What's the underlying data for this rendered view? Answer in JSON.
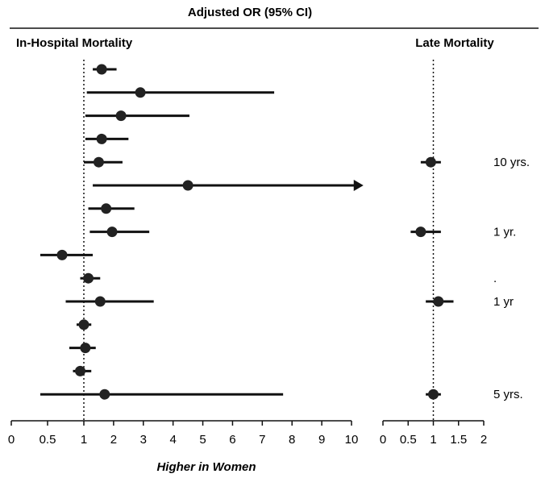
{
  "chart_data": {
    "type": "forest",
    "title": "Adjusted OR (95% CI)",
    "xlabel": "Higher in Women",
    "reference_line": 1,
    "panels": [
      {
        "id": "in_hospital",
        "title": "In-Hospital Mortality",
        "xlim": [
          0,
          10
        ],
        "ticks": [
          "0",
          "0.5",
          "1",
          "2",
          "3",
          "4",
          "5",
          "6",
          "7",
          "8",
          "9",
          "10"
        ],
        "rows": [
          {
            "or": 1.6,
            "lo": 1.3,
            "hi": 2.1
          },
          {
            "or": 2.9,
            "lo": 1.1,
            "hi": 7.4
          },
          {
            "or": 2.25,
            "lo": 1.05,
            "hi": 4.55
          },
          {
            "or": 1.6,
            "lo": 1.05,
            "hi": 2.5
          },
          {
            "or": 1.5,
            "lo": 1.0,
            "hi": 2.3
          },
          {
            "or": 4.5,
            "lo": 1.3,
            "hi": 10.4,
            "arrow": true
          },
          {
            "or": 1.75,
            "lo": 1.15,
            "hi": 2.7
          },
          {
            "or": 1.95,
            "lo": 1.2,
            "hi": 3.2
          },
          {
            "or": 0.7,
            "lo": 0.4,
            "hi": 1.3
          },
          {
            "or": 1.15,
            "lo": 0.95,
            "hi": 1.55
          },
          {
            "or": 1.55,
            "lo": 0.75,
            "hi": 3.35
          },
          {
            "or": 1.0,
            "lo": 0.9,
            "hi": 1.25
          },
          {
            "or": 1.05,
            "lo": 0.8,
            "hi": 1.4
          },
          {
            "or": 0.95,
            "lo": 0.85,
            "hi": 1.25
          },
          {
            "or": 1.7,
            "lo": 0.4,
            "hi": 7.7
          }
        ]
      },
      {
        "id": "late",
        "title": "Late Mortality",
        "xlim": [
          0,
          2
        ],
        "ticks": [
          "0",
          "0.5",
          "1",
          "1.5",
          "2"
        ],
        "rows": [
          {
            "row": 5,
            "or": 0.95,
            "lo": 0.75,
            "hi": 1.15,
            "label": "10 yrs."
          },
          {
            "row": 8,
            "or": 0.75,
            "lo": 0.55,
            "hi": 1.15,
            "label": "1 yr."
          },
          {
            "row": 10,
            "or": null,
            "lo": null,
            "hi": null,
            "label": "."
          },
          {
            "row": 11,
            "or": 1.1,
            "lo": 0.85,
            "hi": 1.4,
            "label": "1 yr"
          },
          {
            "row": 15,
            "or": 1.0,
            "lo": 0.85,
            "hi": 1.15,
            "label": "5 yrs."
          }
        ]
      }
    ]
  }
}
